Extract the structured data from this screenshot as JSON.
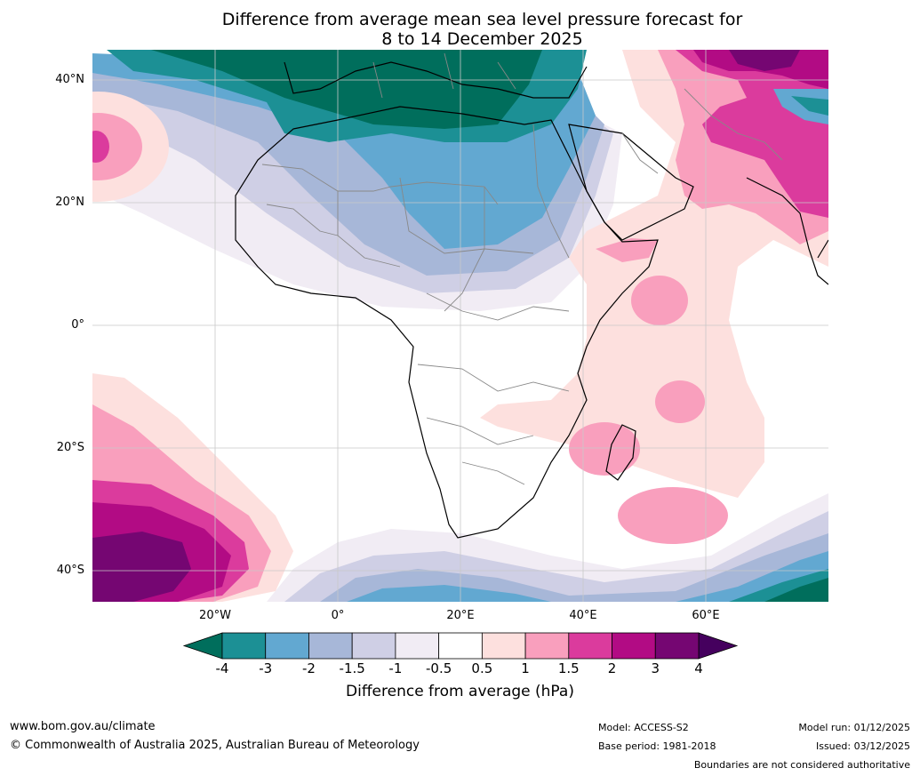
{
  "title_line1": "Difference from average mean sea level pressure forecast for",
  "title_line2": "8 to 14 December 2025",
  "map": {
    "region": "Africa and surrounding oceans",
    "lat_labels": [
      "40°N",
      "20°N",
      "0°",
      "20°S",
      "40°S"
    ],
    "lon_labels": [
      "20°W",
      "0°",
      "20°E",
      "40°E",
      "60°E"
    ]
  },
  "legend": {
    "label": "Difference from average (hPa)",
    "ticks": [
      "-4",
      "-3",
      "-2",
      "-1.5",
      "-1",
      "-0.5",
      "0.5",
      "1",
      "1.5",
      "2",
      "3",
      "4"
    ],
    "colors": [
      "#006e5c",
      "#1c9095",
      "#62a8d1",
      "#a7b7d8",
      "#cfcfe5",
      "#f1ecf4",
      "#ffffff",
      "#fde0de",
      "#f99fbd",
      "#db3b9d",
      "#b20b84",
      "#750672",
      "#45005e"
    ]
  },
  "footer": {
    "url": "www.bom.gov.au/climate",
    "copyright": "© Commonwealth of Australia 2025, Australian Bureau of Meteorology",
    "model": "Model: ACCESS-S2",
    "base_period": "Base period: 1981-2018",
    "model_run": "Model run: 01/12/2025",
    "issued": "Issued: 03/12/2025",
    "disclaimer": "Boundaries are not considered authoritative"
  }
}
